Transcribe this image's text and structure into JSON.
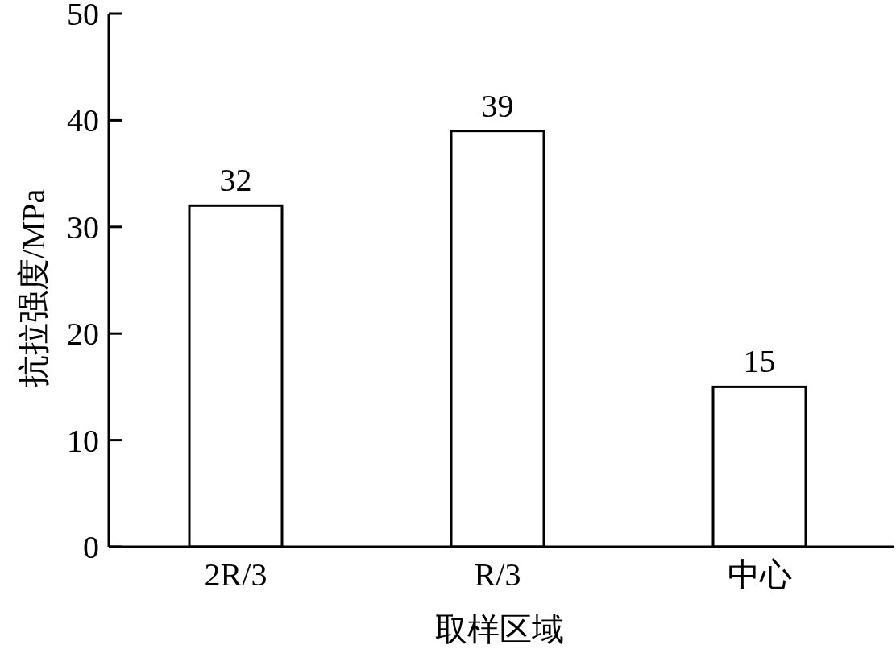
{
  "chart_data": {
    "type": "bar",
    "xlabel": "取样区域",
    "ylabel": "抗拉强度/MPa",
    "categories": [
      "2R/3",
      "R/3",
      "中心"
    ],
    "values": [
      32,
      39,
      15
    ],
    "color": "#ffffff",
    "data_labels": true,
    "ylim": [
      0,
      50
    ],
    "yticks": [
      0,
      10,
      20,
      30,
      40,
      50
    ]
  }
}
